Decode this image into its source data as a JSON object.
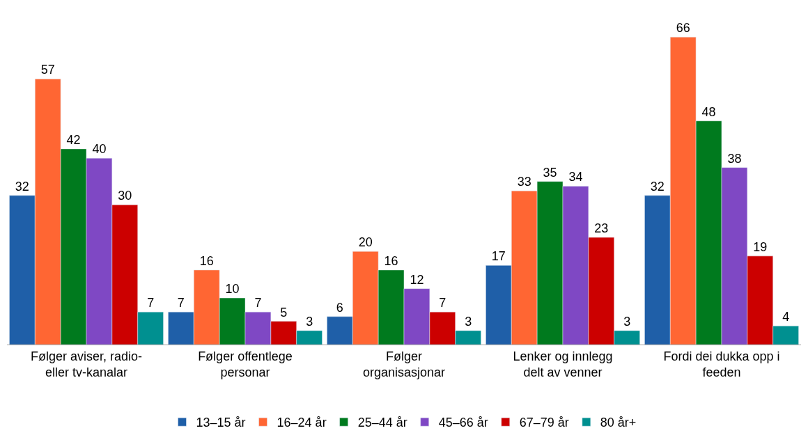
{
  "chart_data": {
    "type": "bar",
    "categories": [
      "Følger aviser, radio-\neller tv-kanalar",
      "Følger offentlege\npersonar",
      "Følger\norganisasjonar",
      "Lenker og innlegg\ndelt av venner",
      "Fordi dei dukka opp i\nfeeden"
    ],
    "series": [
      {
        "name": "13–15 år",
        "color": "#1f5fa8",
        "values": [
          32,
          7,
          6,
          17,
          32
        ]
      },
      {
        "name": "16–24 år",
        "color": "#ff6633",
        "values": [
          57,
          16,
          20,
          33,
          66
        ]
      },
      {
        "name": "25–44 år",
        "color": "#007a1e",
        "values": [
          42,
          10,
          16,
          35,
          48
        ]
      },
      {
        "name": "45–66 år",
        "color": "#7f48c4",
        "values": [
          40,
          7,
          12,
          34,
          38
        ]
      },
      {
        "name": "67–79 år",
        "color": "#cc0000",
        "values": [
          30,
          5,
          7,
          23,
          19
        ]
      },
      {
        "name": "80 år+",
        "color": "#009090",
        "values": [
          7,
          3,
          3,
          3,
          4
        ]
      }
    ],
    "data_labels": true,
    "legend": "bottom"
  }
}
